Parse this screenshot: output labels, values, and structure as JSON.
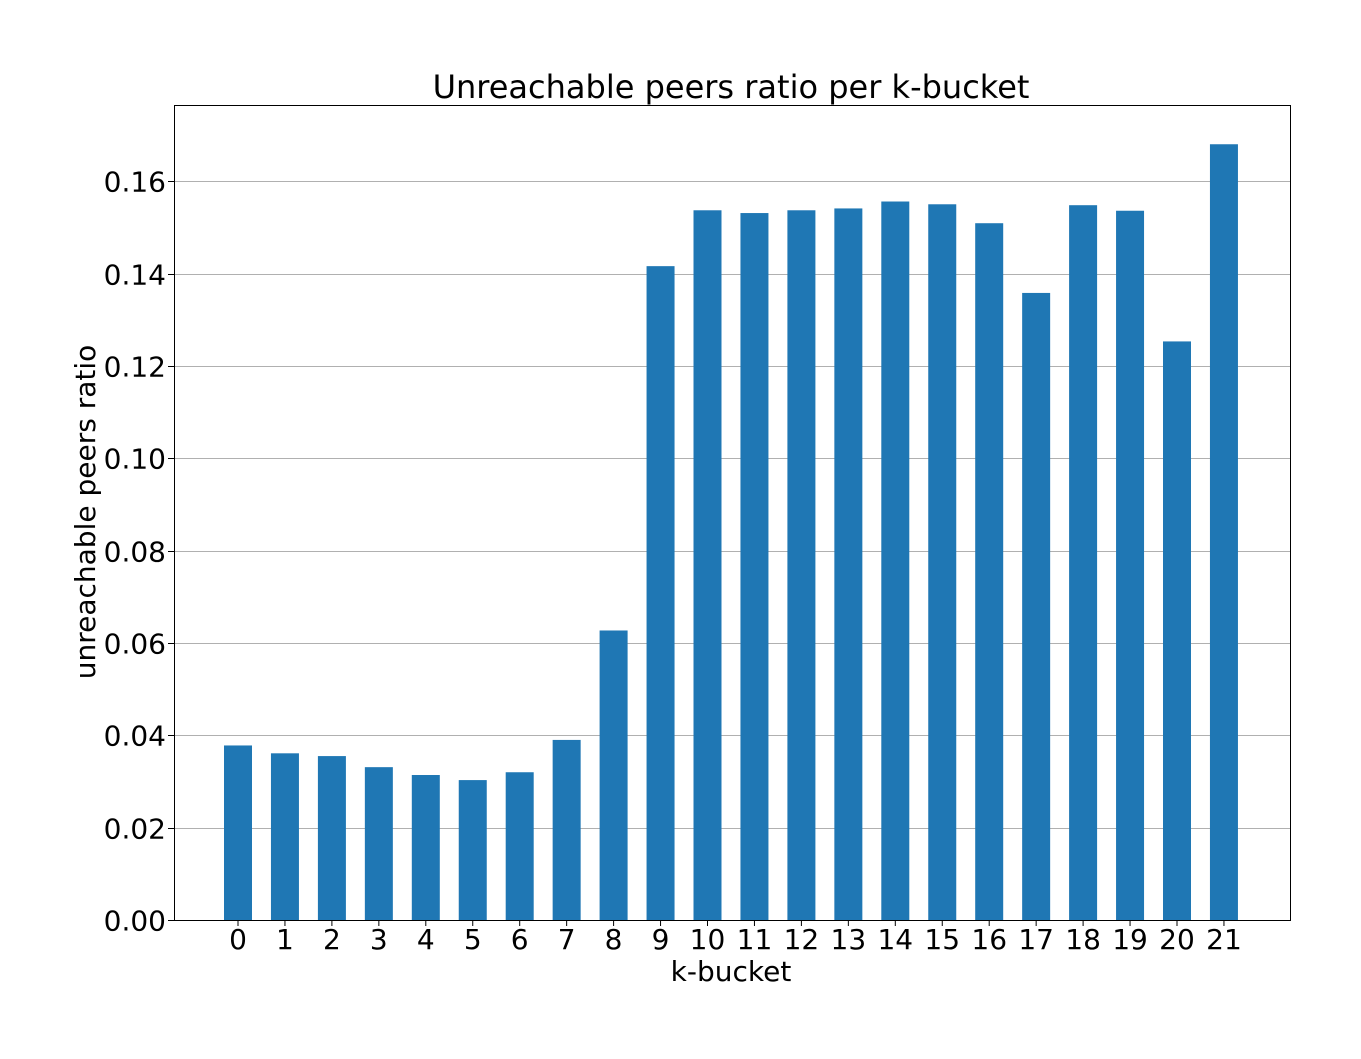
{
  "chart_data": {
    "type": "bar",
    "title": "Unreachable peers ratio per k-bucket",
    "xlabel": "k-bucket",
    "ylabel": "unreachable peers ratio",
    "categories": [
      "0",
      "1",
      "2",
      "3",
      "4",
      "5",
      "6",
      "7",
      "8",
      "9",
      "10",
      "11",
      "12",
      "13",
      "14",
      "15",
      "16",
      "17",
      "18",
      "19",
      "20",
      "21"
    ],
    "values": [
      0.0378,
      0.0361,
      0.0355,
      0.0331,
      0.0314,
      0.0303,
      0.032,
      0.039,
      0.0627,
      0.1416,
      0.1537,
      0.1531,
      0.1537,
      0.1541,
      0.1556,
      0.155,
      0.1509,
      0.1358,
      0.1548,
      0.1536,
      0.1253,
      0.168
    ],
    "ylim": [
      0,
      0.1765
    ],
    "yticks": [
      "0.00",
      "0.02",
      "0.04",
      "0.06",
      "0.08",
      "0.10",
      "0.12",
      "0.14",
      "0.16"
    ],
    "grid": "horizontal",
    "bar_color": "#1f77b4"
  }
}
